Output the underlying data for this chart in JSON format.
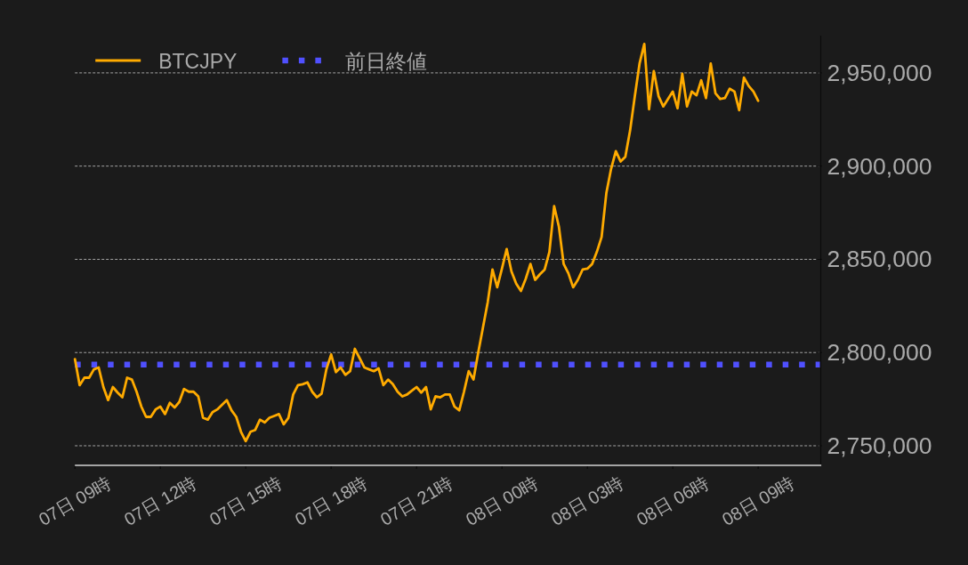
{
  "chart_data": {
    "type": "line",
    "categories": [
      "07日 09時",
      null,
      null,
      null,
      null,
      null,
      null,
      null,
      null,
      null,
      null,
      null,
      null,
      null,
      null,
      null,
      null,
      null,
      "07日 12時",
      null,
      null,
      null,
      null,
      null,
      null,
      null,
      null,
      null,
      null,
      null,
      null,
      null,
      null,
      null,
      null,
      null,
      "07日 15時",
      null,
      null,
      null,
      null,
      null,
      null,
      null,
      null,
      null,
      null,
      null,
      null,
      null,
      null,
      null,
      null,
      null,
      "07日 18時",
      null,
      null,
      null,
      null,
      null,
      null,
      null,
      null,
      null,
      null,
      null,
      null,
      null,
      null,
      null,
      null,
      null,
      "07日 21時",
      null,
      null,
      null,
      null,
      null,
      null,
      null,
      null,
      null,
      null,
      null,
      null,
      null,
      null,
      null,
      null,
      null,
      "08日 00時",
      null,
      null,
      null,
      null,
      null,
      null,
      null,
      null,
      null,
      null,
      null,
      null,
      null,
      null,
      null,
      null,
      null,
      "08日 03時",
      null,
      null,
      null,
      null,
      null,
      null,
      null,
      null,
      null,
      null,
      null,
      null,
      null,
      null,
      null,
      null,
      null,
      "08日 06時",
      null,
      null,
      null,
      null,
      null,
      null,
      null,
      null,
      null,
      null,
      null,
      null,
      null,
      null,
      null,
      null,
      null,
      "08日 09時",
      null,
      null,
      null,
      null,
      null,
      null,
      null,
      null,
      null,
      null,
      null,
      null,
      null
    ],
    "series": [
      {
        "name": "BTCJPY",
        "color": "#ffab00",
        "values": [
          2796500,
          2782500,
          2786500,
          2786500,
          2791000,
          2792000,
          2781500,
          2774500,
          2781500,
          2778500,
          2776000,
          2786500,
          2785500,
          2779000,
          2771000,
          2765500,
          2765500,
          2769500,
          2771000,
          2767000,
          2773000,
          2770500,
          2773500,
          2780500,
          2779000,
          2779000,
          2776500,
          2765000,
          2764000,
          2768000,
          2769500,
          2772000,
          2774500,
          2769000,
          2765500,
          2757500,
          2752500,
          2757500,
          2758500,
          2764000,
          2762500,
          2765000,
          2766000,
          2767000,
          2761500,
          2765000,
          2777500,
          2782500,
          2783000,
          2784000,
          2779000,
          2776000,
          2778000,
          2791000,
          2799000,
          2789500,
          2792000,
          2788000,
          2790000,
          2802000,
          2797000,
          2792000,
          2791000,
          2790000,
          2791500,
          2782500,
          2785500,
          2783000,
          2779000,
          2776500,
          2777500,
          2779500,
          2781500,
          2778500,
          2781500,
          2769500,
          2776500,
          2776000,
          2777500,
          2777500,
          2771000,
          2769000,
          2779000,
          2790000,
          2785500,
          2800000,
          2813500,
          2827000,
          2844500,
          2835000,
          2845000,
          2855500,
          2843500,
          2837000,
          2833000,
          2839500,
          2847500,
          2839000,
          2842000,
          2844500,
          2854000,
          2878500,
          2867500,
          2847500,
          2842500,
          2835000,
          2839000,
          2844500,
          2845000,
          2847500,
          2854000,
          2862000,
          2885500,
          2898500,
          2908000,
          2902500,
          2905000,
          2919000,
          2937500,
          2955000,
          2965500,
          2930500,
          2951000,
          2937500,
          2932000,
          2936000,
          2940000,
          2931000,
          2949500,
          2932000,
          2940000,
          2938000,
          2946000,
          2936500,
          2955000,
          2939000,
          2936000,
          2936500,
          2941500,
          2940000,
          2930000,
          2947500,
          2943000,
          2940000,
          2935000,
          null,
          null,
          null,
          null,
          null,
          null,
          null,
          null,
          null,
          null,
          null,
          null,
          null
        ]
      }
    ],
    "ylim": [
      2739500,
      2970000
    ],
    "yticks": [
      {
        "value": 2750000,
        "label": "2,750,000"
      },
      {
        "value": 2800000,
        "label": "2,800,000"
      },
      {
        "value": 2850000,
        "label": "2,850,000"
      },
      {
        "value": 2900000,
        "label": "2,900,000"
      },
      {
        "value": 2950000,
        "label": "2,950,000"
      }
    ],
    "ref_lines": [
      {
        "axis": "y",
        "value": 2793500,
        "label": "前日終値",
        "color": "#5050ff",
        "line_style": "dotted"
      }
    ],
    "grid": "y",
    "legend": "top left"
  }
}
